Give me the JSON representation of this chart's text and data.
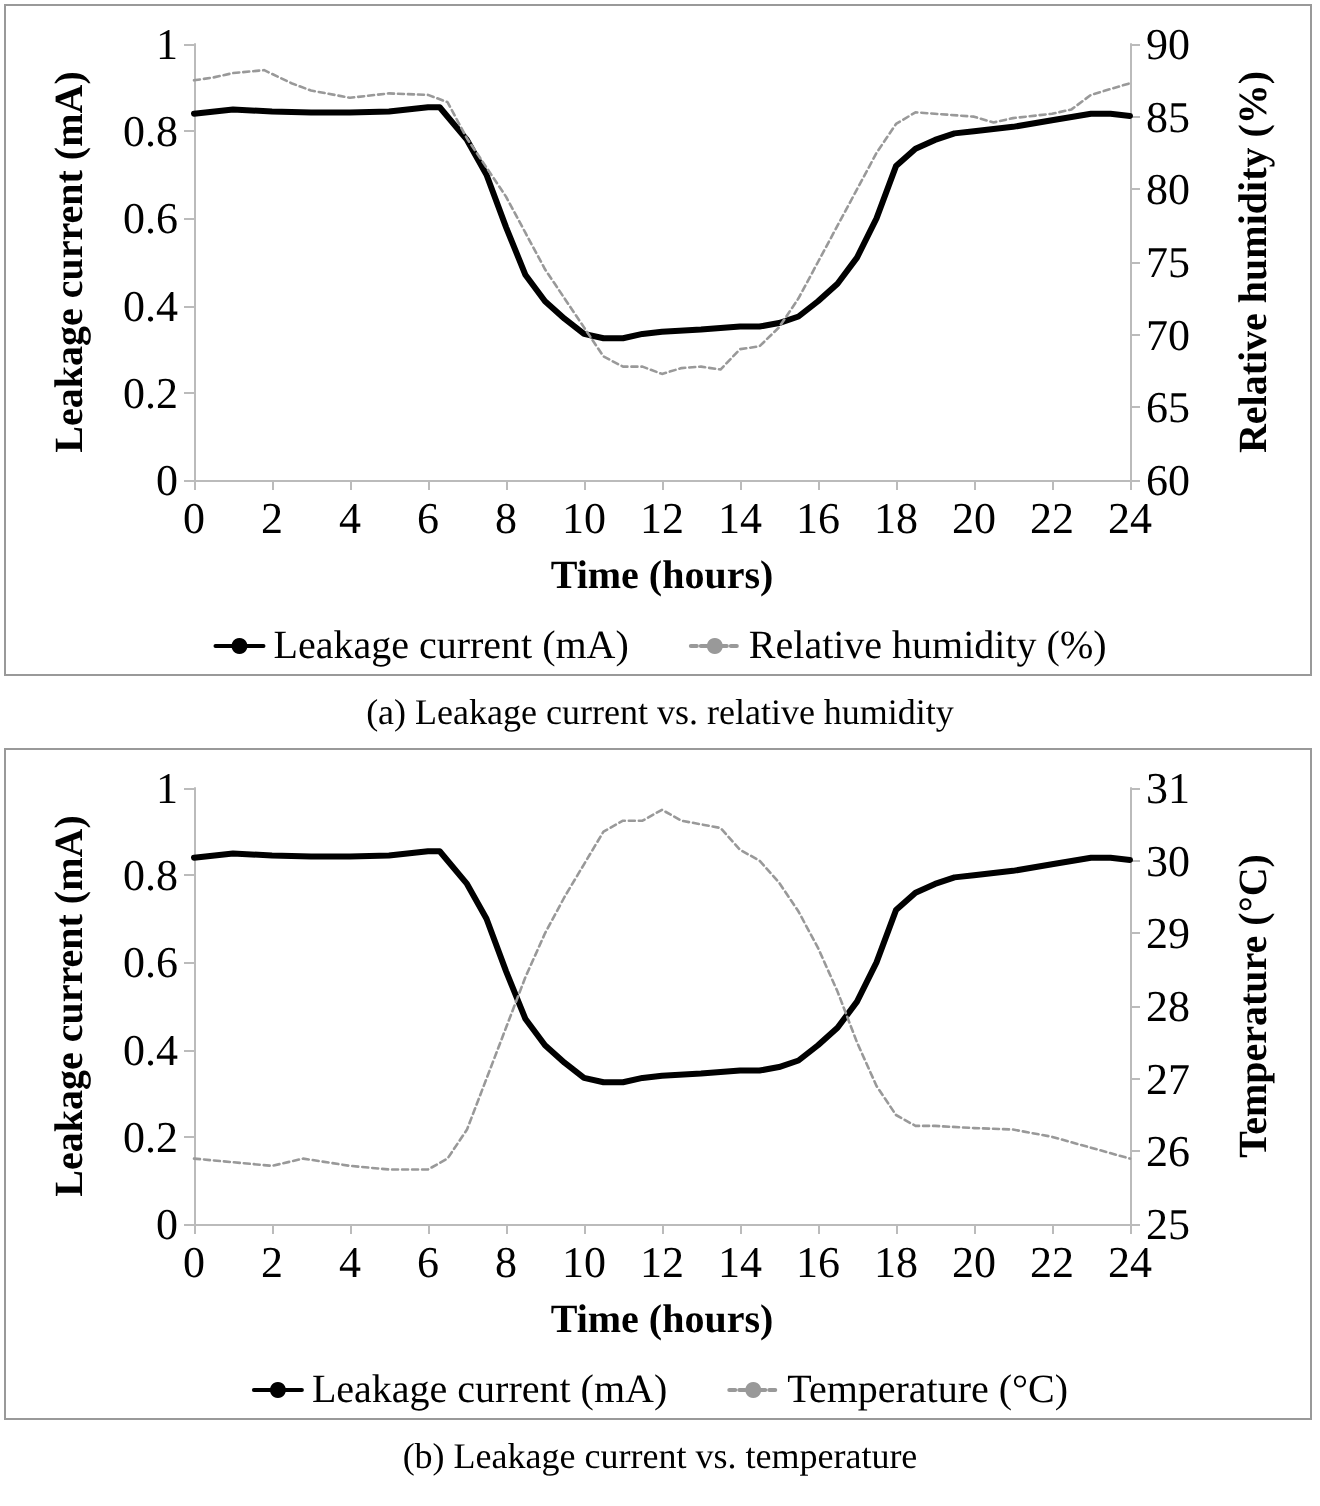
{
  "chart_data": [
    {
      "type": "line",
      "title": "(a) Leakage current vs. relative humidity",
      "xlabel": "Time (hours)",
      "ylabel": "Leakage current (mA)",
      "y2label": "Relative humidity (%)",
      "xlim": [
        0,
        24
      ],
      "xticks": [
        0,
        2,
        4,
        6,
        8,
        10,
        12,
        14,
        16,
        18,
        20,
        22,
        24
      ],
      "ylim": [
        0,
        1
      ],
      "yticks": [
        0,
        0.2,
        0.4,
        0.6,
        0.8,
        1
      ],
      "y2lim": [
        60,
        90
      ],
      "y2ticks": [
        60,
        65,
        70,
        75,
        80,
        85,
        90
      ],
      "legend": "bottom",
      "grid": false,
      "marker": "none",
      "series": [
        {
          "name": "Leakage current (mA)",
          "color": "#000000",
          "line_style": "solid",
          "x": [
            0,
            1,
            2,
            3,
            4,
            5,
            6,
            6.3,
            7,
            7.5,
            8,
            8.5,
            9,
            9.5,
            10,
            10.5,
            11,
            11.5,
            12,
            13,
            14,
            14.5,
            15,
            15.5,
            16,
            16.5,
            17,
            17.5,
            18,
            18.5,
            19,
            19.5,
            20,
            21,
            22,
            23,
            23.5,
            24
          ],
          "values": [
            0.84,
            0.85,
            0.845,
            0.843,
            0.843,
            0.845,
            0.855,
            0.855,
            0.78,
            0.7,
            0.58,
            0.47,
            0.41,
            0.37,
            0.335,
            0.325,
            0.325,
            0.335,
            0.34,
            0.345,
            0.352,
            0.352,
            0.36,
            0.375,
            0.41,
            0.45,
            0.51,
            0.6,
            0.72,
            0.76,
            0.78,
            0.795,
            0.8,
            0.81,
            0.825,
            0.84,
            0.84,
            0.835
          ]
        },
        {
          "name": "Relative humidity (%)",
          "color": "#999999",
          "line_style": "dashed",
          "axis": "y2",
          "x": [
            0,
            0.5,
            1,
            1.8,
            2.5,
            3,
            4,
            5,
            6,
            6.5,
            7,
            7.5,
            8,
            8.5,
            9,
            9.5,
            10,
            10.5,
            11,
            11.5,
            12,
            12.5,
            13,
            13.5,
            14,
            14.5,
            15,
            15.5,
            16,
            16.5,
            17,
            17.5,
            18,
            18.5,
            19,
            20,
            20.5,
            21,
            22,
            22.5,
            23,
            24
          ],
          "values": [
            87.5,
            87.7,
            88,
            88.2,
            87.3,
            86.8,
            86.3,
            86.6,
            86.5,
            86,
            83.5,
            81.5,
            79.5,
            77,
            74.5,
            72.5,
            70.5,
            68.5,
            67.8,
            67.8,
            67.3,
            67.7,
            67.8,
            67.6,
            69,
            69.2,
            70.5,
            72.5,
            75,
            77.5,
            80,
            82.5,
            84.5,
            85.3,
            85.2,
            85,
            84.6,
            84.9,
            85.2,
            85.5,
            86.5,
            87.3
          ]
        }
      ]
    },
    {
      "type": "line",
      "title": "(b) Leakage current vs. temperature",
      "xlabel": "Time (hours)",
      "ylabel": "Leakage current (mA)",
      "y2label": "Temperature (°C)",
      "xlim": [
        0,
        24
      ],
      "xticks": [
        0,
        2,
        4,
        6,
        8,
        10,
        12,
        14,
        16,
        18,
        20,
        22,
        24
      ],
      "ylim": [
        0,
        1
      ],
      "yticks": [
        0,
        0.2,
        0.4,
        0.6,
        0.8,
        1
      ],
      "y2lim": [
        25,
        31
      ],
      "y2ticks": [
        25,
        26,
        27,
        28,
        29,
        30,
        31
      ],
      "legend": "bottom",
      "grid": false,
      "marker": "none",
      "series": [
        {
          "name": "Leakage current (mA)",
          "color": "#000000",
          "line_style": "solid",
          "x": [
            0,
            1,
            2,
            3,
            4,
            5,
            6,
            6.3,
            7,
            7.5,
            8,
            8.5,
            9,
            9.5,
            10,
            10.5,
            11,
            11.5,
            12,
            13,
            14,
            14.5,
            15,
            15.5,
            16,
            16.5,
            17,
            17.5,
            18,
            18.5,
            19,
            19.5,
            20,
            21,
            22,
            23,
            23.5,
            24
          ],
          "values": [
            0.84,
            0.85,
            0.845,
            0.843,
            0.843,
            0.845,
            0.855,
            0.855,
            0.78,
            0.7,
            0.58,
            0.47,
            0.41,
            0.37,
            0.335,
            0.325,
            0.325,
            0.335,
            0.34,
            0.345,
            0.352,
            0.352,
            0.36,
            0.375,
            0.41,
            0.45,
            0.51,
            0.6,
            0.72,
            0.76,
            0.78,
            0.795,
            0.8,
            0.81,
            0.825,
            0.84,
            0.84,
            0.835
          ]
        },
        {
          "name": "Temperature (°C)",
          "color": "#999999",
          "line_style": "dashed",
          "axis": "y2",
          "x": [
            0,
            1,
            2,
            2.8,
            4,
            5,
            6,
            6.5,
            7,
            7.5,
            8,
            8.5,
            9,
            9.5,
            10,
            10.5,
            11,
            11.5,
            12,
            12.5,
            13,
            13.5,
            14,
            14.5,
            15,
            15.5,
            16,
            16.5,
            17,
            17.5,
            18,
            18.5,
            19,
            20,
            21,
            22,
            23,
            24
          ],
          "values": [
            25.9,
            25.85,
            25.8,
            25.9,
            25.8,
            25.75,
            25.75,
            25.9,
            26.3,
            27,
            27.7,
            28.4,
            29,
            29.5,
            29.95,
            30.4,
            30.55,
            30.55,
            30.7,
            30.55,
            30.5,
            30.45,
            30.15,
            30,
            29.7,
            29.3,
            28.8,
            28.2,
            27.5,
            26.9,
            26.5,
            26.35,
            26.35,
            26.32,
            26.3,
            26.2,
            26.05,
            25.9
          ]
        }
      ]
    }
  ]
}
